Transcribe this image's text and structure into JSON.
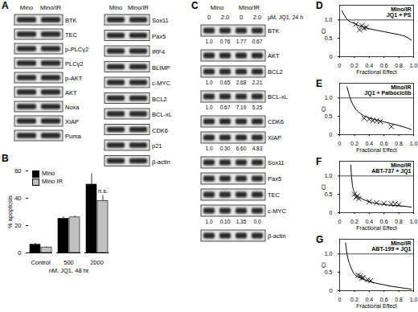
{
  "panels": {
    "A": {
      "label": "A",
      "lanes": [
        "Mino",
        "Mino/IR"
      ],
      "blots": [
        [
          "BTK",
          "TEC",
          "p-PLCγ2",
          "PLCγ2",
          "p-AKT",
          "AKT",
          "Noxa",
          "XIAP",
          "Puma"
        ],
        [
          "Sox11",
          "Pax5",
          "IRF4",
          "BLIMP",
          "c-MYC",
          "BCL2",
          "BCL-xL",
          "CDK6",
          "p21",
          "β-actin"
        ]
      ]
    },
    "C": {
      "label": "C",
      "lanes": [
        "Mino",
        "Mino/IR"
      ],
      "doses": [
        "0",
        "2.0",
        "0",
        "2.0"
      ],
      "treatment": "µM, JQ1, 24 h",
      "rows": [
        {
          "name": "BTK",
          "values": [
            "1.0",
            "0.76",
            "1.77",
            "0.67"
          ]
        },
        {
          "name": "AKT"
        },
        {
          "name": "BCL2",
          "values": [
            "1.0",
            "0.65",
            "2.68",
            "2.21"
          ]
        },
        {
          "name": "BCL-xL",
          "values": [
            "1.0",
            "0.67",
            "7.19",
            "5.25"
          ]
        },
        {
          "name": "CDK6"
        },
        {
          "name": "XIAP",
          "values": [
            "1.0",
            "0.30",
            "6.60",
            "4.83"
          ]
        },
        {
          "name": "Sox11"
        },
        {
          "name": "Pax5"
        },
        {
          "name": "TEC"
        },
        {
          "name": "c-MYC",
          "values": [
            "1.0",
            "0.10",
            "1.35",
            "0.0"
          ]
        },
        {
          "name": "β-actin"
        }
      ]
    }
  },
  "chart_data": [
    {
      "panel": "B",
      "type": "bar",
      "categories": [
        "Control",
        "500",
        "2000"
      ],
      "series": [
        {
          "name": "Mino",
          "color": "#000000",
          "values": [
            6,
            25,
            50
          ],
          "errors": [
            1,
            1.5,
            8
          ]
        },
        {
          "name": "Mino IR",
          "color": "#c0c0c0",
          "values": [
            4,
            26,
            38
          ],
          "errors": [
            0.5,
            1,
            4
          ]
        }
      ],
      "x_label": "nM, JQ1, 48 hr",
      "y_label": "% apoptosis",
      "ylim": [
        0,
        60
      ],
      "yticks": [
        0,
        20,
        40,
        60
      ],
      "legend": "top-left",
      "annotations": [
        {
          "text": "n.s.",
          "category": "2000"
        }
      ]
    },
    {
      "panel": "D",
      "type": "scatter",
      "title": "Mino/IR",
      "subtitle": "JQ1 + PS",
      "x_label": "Fractional Effect",
      "y_label": "CI",
      "xlim": [
        0,
        1
      ],
      "ylim": [
        0,
        1.4
      ],
      "xticks": [
        0,
        0.2,
        0.4,
        0.6,
        0.8,
        {
          "value": 1,
          "label": "1.0"
        }
      ],
      "yticks": [
        0,
        0.5,
        {
          "value": 1,
          "label": "1.0"
        }
      ],
      "reference_line": 1,
      "marker": "x",
      "points": {
        "x": [
          0.22,
          0.27,
          0.3,
          0.33,
          0.36
        ],
        "y": [
          0.88,
          0.73,
          0.85,
          0.78,
          0.8
        ]
      },
      "curve": {
        "x": [
          0.03,
          0.1,
          0.2,
          0.3,
          0.4,
          0.5,
          0.6,
          0.7,
          0.8,
          0.9,
          0.97
        ],
        "y": [
          1.25,
          1.02,
          0.9,
          0.82,
          0.76,
          0.72,
          0.68,
          0.64,
          0.6,
          0.54,
          0.45
        ]
      }
    },
    {
      "panel": "E",
      "type": "scatter",
      "title": "Mino/IR",
      "subtitle": "JQ1 + Palbociclib",
      "x_label": "Fractional Effect",
      "y_label": "CI",
      "xlim": [
        0,
        1
      ],
      "ylim": [
        0,
        1.4
      ],
      "xticks": [
        0,
        0.2,
        0.4,
        0.6,
        0.8,
        {
          "value": 1,
          "label": "1.0"
        }
      ],
      "yticks": [
        0,
        0.5,
        {
          "value": 1,
          "label": "1.0"
        }
      ],
      "reference_line": 1,
      "marker": "x",
      "points": {
        "x": [
          0.33,
          0.4,
          0.45,
          0.5,
          0.55,
          0.7
        ],
        "y": [
          0.45,
          0.42,
          0.38,
          0.38,
          0.36,
          0.22
        ]
      },
      "curve": {
        "x": [
          0.1,
          0.15,
          0.2,
          0.3,
          0.4,
          0.5,
          0.6,
          0.7,
          0.8,
          0.9,
          0.97
        ],
        "y": [
          1.3,
          0.95,
          0.75,
          0.55,
          0.46,
          0.4,
          0.35,
          0.3,
          0.25,
          0.19,
          0.14
        ]
      }
    },
    {
      "panel": "F",
      "type": "scatter",
      "title": "Mino/IR",
      "subtitle": "ABT-737 + JQ1",
      "x_label": "Fractional Effect",
      "y_label": "CI",
      "xlim": [
        0,
        1
      ],
      "ylim": [
        0,
        1.4
      ],
      "xticks": [
        0,
        0.2,
        0.4,
        0.6,
        0.8,
        {
          "value": 1,
          "label": "1.0"
        }
      ],
      "yticks": [
        0,
        0.5,
        {
          "value": 1,
          "label": "1.0"
        }
      ],
      "reference_line": 1,
      "marker": "x",
      "points": {
        "x": [
          0.2,
          0.22,
          0.24,
          0.26,
          0.4,
          0.5,
          0.6,
          0.7,
          0.75,
          0.8
        ],
        "y": [
          0.5,
          0.42,
          0.45,
          0.38,
          0.3,
          0.27,
          0.25,
          0.24,
          0.24,
          0.22
        ]
      },
      "curve": {
        "x": [
          0.15,
          0.17,
          0.2,
          0.25,
          0.3,
          0.4,
          0.5,
          0.6,
          0.7,
          0.8,
          0.9,
          0.97
        ],
        "y": [
          1.3,
          0.8,
          0.55,
          0.44,
          0.38,
          0.3,
          0.25,
          0.22,
          0.2,
          0.19,
          0.17,
          0.15
        ]
      }
    },
    {
      "panel": "G",
      "type": "scatter",
      "title": "Mino/IR",
      "subtitle": "ABT-199 + JQ1",
      "x_label": "Fractional Effect",
      "y_label": "CI",
      "xlim": [
        0,
        1
      ],
      "ylim": [
        0,
        1.4
      ],
      "xticks": [
        0,
        0.2,
        0.4,
        0.6,
        0.8,
        {
          "value": 1,
          "label": "1.0"
        }
      ],
      "yticks": [
        0,
        0.5,
        {
          "value": 1,
          "label": "1.0"
        }
      ],
      "reference_line": 1,
      "marker": "x",
      "points": {
        "x": [
          0.25,
          0.28,
          0.3,
          0.32,
          0.38,
          0.42
        ],
        "y": [
          0.42,
          0.4,
          0.35,
          0.35,
          0.3,
          0.27
        ]
      },
      "curve": {
        "x": [
          0.08,
          0.1,
          0.15,
          0.2,
          0.3,
          0.4,
          0.5,
          0.6,
          0.7,
          0.8,
          0.9,
          0.97
        ],
        "y": [
          1.3,
          1.0,
          0.65,
          0.45,
          0.33,
          0.25,
          0.2,
          0.16,
          0.12,
          0.09,
          0.06,
          0.04
        ]
      }
    }
  ]
}
